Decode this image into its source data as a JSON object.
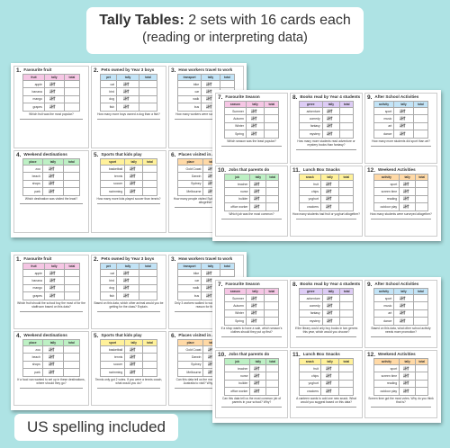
{
  "title": {
    "bold": "Tally Tables:",
    "rest": " 2 sets with 16 cards each",
    "line2": "(reading or interpreting data)"
  },
  "footer": "US spelling included",
  "headers": {
    "tally": "tally",
    "total": "total"
  },
  "set1": [
    {
      "num": "1.",
      "title": "Favourite fruit",
      "color": "pink",
      "col": "fruit",
      "rows": [
        "apple",
        "banana",
        "mango",
        "grapes"
      ],
      "q": "Which fruit was the most popular?"
    },
    {
      "num": "2.",
      "title": "Pets owned by Year 3 boys",
      "color": "blue",
      "col": "pet",
      "rows": [
        "cat",
        "bird",
        "dog",
        "fish"
      ],
      "q": "How many more boys owned a dog than a fish?"
    },
    {
      "num": "3.",
      "title": "How workers travel to work",
      "color": "blue",
      "col": "transport",
      "rows": [
        "bike",
        "car",
        "walk",
        "bus"
      ],
      "q": "How many workers were surveyed altogether?"
    },
    {
      "num": "4.",
      "title": "Weekend destinations",
      "color": "green",
      "col": "place",
      "rows": [
        "zoo",
        "beach",
        "shops",
        "park"
      ],
      "q": "Which destination was visited the least?"
    },
    {
      "num": "5.",
      "title": "Sports that kids play",
      "color": "yellow",
      "col": "sport",
      "rows": [
        "basketball",
        "tennis",
        "soccer",
        "swimming"
      ],
      "q": "How many more kids played soccer than tennis?"
    },
    {
      "num": "6.",
      "title": "Places visited in Australia",
      "color": "orange",
      "col": "place",
      "rows": [
        "Gold Coast",
        "Darwin",
        "Sydney",
        "Melbourne"
      ],
      "q": "How many people visited Sydney and Gold Coast altogether?"
    }
  ],
  "set2": [
    {
      "num": "7.",
      "title": "Favourite Season",
      "color": "pink",
      "col": "season",
      "rows": [
        "Summer",
        "Autumn",
        "Winter",
        "Spring"
      ],
      "q": "Which season was the least popular?"
    },
    {
      "num": "8.",
      "title": "Books read by Year 4 students",
      "color": "purple",
      "col": "genre",
      "rows": [
        "adventure",
        "comedy",
        "fantasy",
        "mystery"
      ],
      "q": "How many more students read adventure or mystery books than fantasy?"
    },
    {
      "num": "9.",
      "title": "After School Activities",
      "color": "blue",
      "col": "activity",
      "rows": [
        "sport",
        "music",
        "art",
        "dance"
      ],
      "q": "How many more students did sport than art?"
    },
    {
      "num": "10.",
      "title": "Jobs that parents do",
      "color": "green",
      "col": "job",
      "rows": [
        "teacher",
        "nurse",
        "builder",
        "office worker"
      ],
      "q": "Which job was the most common?"
    },
    {
      "num": "11.",
      "title": "Lunch Box Snacks",
      "color": "yellow",
      "col": "snack",
      "rows": [
        "fruit",
        "chips",
        "yoghurt",
        "crackers"
      ],
      "q": "How many students had fruit or yoghurt altogether?"
    },
    {
      "num": "12.",
      "title": "Weekend Activities",
      "color": "orange",
      "col": "activity",
      "rows": [
        "sport",
        "screen time",
        "reading",
        "outdoor play"
      ],
      "q": "How many students were surveyed altogether?"
    }
  ],
  "set3": [
    {
      "num": "1.",
      "title": "Favourite fruit",
      "color": "pink",
      "col": "fruit",
      "rows": [
        "apple",
        "banana",
        "mango",
        "grapes"
      ],
      "q": "Which fruit should the school buy the most of for the staffroom based on this data?"
    },
    {
      "num": "2.",
      "title": "Pets owned by Year 3 boys",
      "color": "blue",
      "col": "pet",
      "rows": [
        "cat",
        "bird",
        "dog",
        "fish"
      ],
      "q": "Based on this data, which other animal would you be getting for the class? Explain."
    },
    {
      "num": "3.",
      "title": "How workers travel to work",
      "color": "blue",
      "col": "transport",
      "rows": [
        "bike",
        "car",
        "walk",
        "bus"
      ],
      "q": "Only 3 workers walked to work. What might be a reason for this?"
    },
    {
      "num": "4.",
      "title": "Weekend destinations",
      "color": "green",
      "col": "place",
      "rows": [
        "zoo",
        "beach",
        "shops",
        "park"
      ],
      "q": "If a food van wanted to set up in these destinations, where should they go?"
    },
    {
      "num": "5.",
      "title": "Sports that kids play",
      "color": "yellow",
      "col": "sport",
      "rows": [
        "basketball",
        "tennis",
        "soccer",
        "swimming"
      ],
      "q": "Tennis only got 2 votes. If you were a tennis coach, what would you do?"
    },
    {
      "num": "6.",
      "title": "Places visited in Australia",
      "color": "orange",
      "col": "place",
      "rows": [
        "Gold Coast",
        "Darwin",
        "Sydney",
        "Melbourne"
      ],
      "q": "Can this data tell us the most popular place in Australia to visit? Why or why not?"
    }
  ],
  "set4": [
    {
      "num": "7.",
      "title": "Favourite Season",
      "color": "pink",
      "col": "season",
      "rows": [
        "Summer",
        "Autumn",
        "Winter",
        "Spring"
      ],
      "q": "If a shop wants to have a sale, which season's clothes should they put up first?"
    },
    {
      "num": "8.",
      "title": "Books read by Year 4 students",
      "color": "purple",
      "col": "genre",
      "rows": [
        "adventure",
        "comedy",
        "fantasy",
        "mystery"
      ],
      "q": "If the library could only buy books in two genres this year, which would you choose?"
    },
    {
      "num": "9.",
      "title": "After School Activities",
      "color": "blue",
      "col": "activity",
      "rows": [
        "sport",
        "music",
        "art",
        "dance"
      ],
      "q": "Based on this data, what other school activity needs more promotion?"
    },
    {
      "num": "10.",
      "title": "Jobs that parents do",
      "color": "green",
      "col": "job",
      "rows": [
        "teacher",
        "nurse",
        "builder",
        "office worker"
      ],
      "q": "Can this data tell us the most common job of parents in your school? Why?"
    },
    {
      "num": "11.",
      "title": "Lunch Box Snacks",
      "color": "yellow",
      "col": "snack",
      "rows": [
        "fruit",
        "chips",
        "yoghurt",
        "crackers"
      ],
      "q": "A canteen wants to add one new snack. What would you suggest based on this data?"
    },
    {
      "num": "12.",
      "title": "Weekend Activities",
      "color": "orange",
      "col": "activity",
      "rows": [
        "sport",
        "screen time",
        "reading",
        "outdoor play"
      ],
      "q": "Screen time got the most votes. Why do you think that is?"
    }
  ]
}
